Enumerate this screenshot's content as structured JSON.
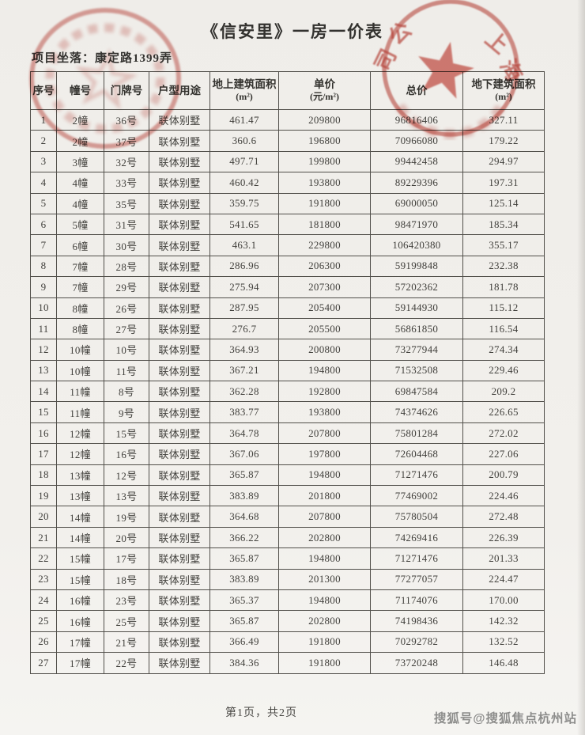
{
  "title": "《信安里》一房一价表",
  "project_location": "项目坐落：康定路1399弄",
  "table": {
    "headers": [
      {
        "label": "序号"
      },
      {
        "label": "幢号"
      },
      {
        "label": "门牌号"
      },
      {
        "label": "户型用途"
      },
      {
        "label": "地上建筑面积",
        "unit": "(m²)"
      },
      {
        "label": "单价",
        "unit": "(元/m²)"
      },
      {
        "label": "总价"
      },
      {
        "label": "地下建筑面积",
        "unit": "(m²)"
      }
    ],
    "rows": [
      [
        "1",
        "2幢",
        "36号",
        "联体别墅",
        "461.47",
        "209800",
        "96816406",
        "327.11"
      ],
      [
        "2",
        "2幢",
        "37号",
        "联体别墅",
        "360.6",
        "196800",
        "70966080",
        "179.22"
      ],
      [
        "3",
        "3幢",
        "32号",
        "联体别墅",
        "497.71",
        "199800",
        "99442458",
        "294.97"
      ],
      [
        "4",
        "4幢",
        "33号",
        "联体别墅",
        "460.42",
        "193800",
        "89229396",
        "197.31"
      ],
      [
        "5",
        "4幢",
        "35号",
        "联体别墅",
        "359.75",
        "191800",
        "69000050",
        "125.14"
      ],
      [
        "6",
        "5幢",
        "31号",
        "联体别墅",
        "541.65",
        "181800",
        "98471970",
        "185.34"
      ],
      [
        "7",
        "6幢",
        "30号",
        "联体别墅",
        "463.1",
        "229800",
        "106420380",
        "355.17"
      ],
      [
        "8",
        "7幢",
        "28号",
        "联体别墅",
        "286.96",
        "206300",
        "59199848",
        "232.38"
      ],
      [
        "9",
        "7幢",
        "29号",
        "联体别墅",
        "275.94",
        "207300",
        "57202362",
        "181.78"
      ],
      [
        "10",
        "8幢",
        "26号",
        "联体别墅",
        "287.95",
        "205400",
        "59144930",
        "115.12"
      ],
      [
        "11",
        "8幢",
        "27号",
        "联体别墅",
        "276.7",
        "205500",
        "56861850",
        "116.54"
      ],
      [
        "12",
        "10幢",
        "10号",
        "联体别墅",
        "364.93",
        "200800",
        "73277944",
        "274.34"
      ],
      [
        "13",
        "10幢",
        "11号",
        "联体别墅",
        "367.21",
        "194800",
        "71532508",
        "229.46"
      ],
      [
        "14",
        "11幢",
        "8号",
        "联体别墅",
        "362.28",
        "192800",
        "69847584",
        "209.2"
      ],
      [
        "15",
        "11幢",
        "9号",
        "联体别墅",
        "383.77",
        "193800",
        "74374626",
        "226.65"
      ],
      [
        "16",
        "12幢",
        "15号",
        "联体别墅",
        "364.78",
        "207800",
        "75801284",
        "272.02"
      ],
      [
        "17",
        "12幢",
        "16号",
        "联体别墅",
        "367.06",
        "197800",
        "72604468",
        "227.06"
      ],
      [
        "18",
        "13幢",
        "12号",
        "联体别墅",
        "365.87",
        "194800",
        "71271476",
        "200.79"
      ],
      [
        "19",
        "13幢",
        "13号",
        "联体别墅",
        "383.89",
        "201800",
        "77469002",
        "224.46"
      ],
      [
        "20",
        "14幢",
        "19号",
        "联体别墅",
        "364.68",
        "207800",
        "75780504",
        "272.48"
      ],
      [
        "21",
        "14幢",
        "20号",
        "联体别墅",
        "366.22",
        "202800",
        "74269416",
        "226.39"
      ],
      [
        "22",
        "15幢",
        "17号",
        "联体别墅",
        "365.87",
        "194800",
        "71271476",
        "201.33"
      ],
      [
        "23",
        "15幢",
        "18号",
        "联体别墅",
        "383.89",
        "201300",
        "77277057",
        "224.47"
      ],
      [
        "24",
        "16幢",
        "23号",
        "联体别墅",
        "365.37",
        "194800",
        "71174076",
        "170.00"
      ],
      [
        "25",
        "16幢",
        "25号",
        "联体别墅",
        "365.87",
        "202800",
        "74198436",
        "142.32"
      ],
      [
        "26",
        "17幢",
        "21号",
        "联体别墅",
        "366.49",
        "191800",
        "70292782",
        "132.52"
      ],
      [
        "27",
        "17幢",
        "22号",
        "联体别墅",
        "384.36",
        "191800",
        "73720248",
        "146.48"
      ]
    ]
  },
  "footer": {
    "page_info": "第1页，共2页"
  },
  "watermark": "搜狐号@搜狐焦点杭州站",
  "stamps": {
    "right": {
      "chars": [
        "公",
        "司",
        "上",
        "海"
      ]
    }
  },
  "colors": {
    "stamp_red": "#c24b42",
    "paper": "#f2f0ec",
    "text": "#3b3a37",
    "watermark_gray": "#8d8d8b"
  }
}
